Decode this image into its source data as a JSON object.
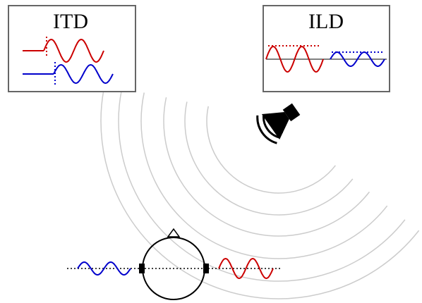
{
  "itd_box": {
    "title": "ITD"
  },
  "ild_box": {
    "title": "ILD"
  }
}
